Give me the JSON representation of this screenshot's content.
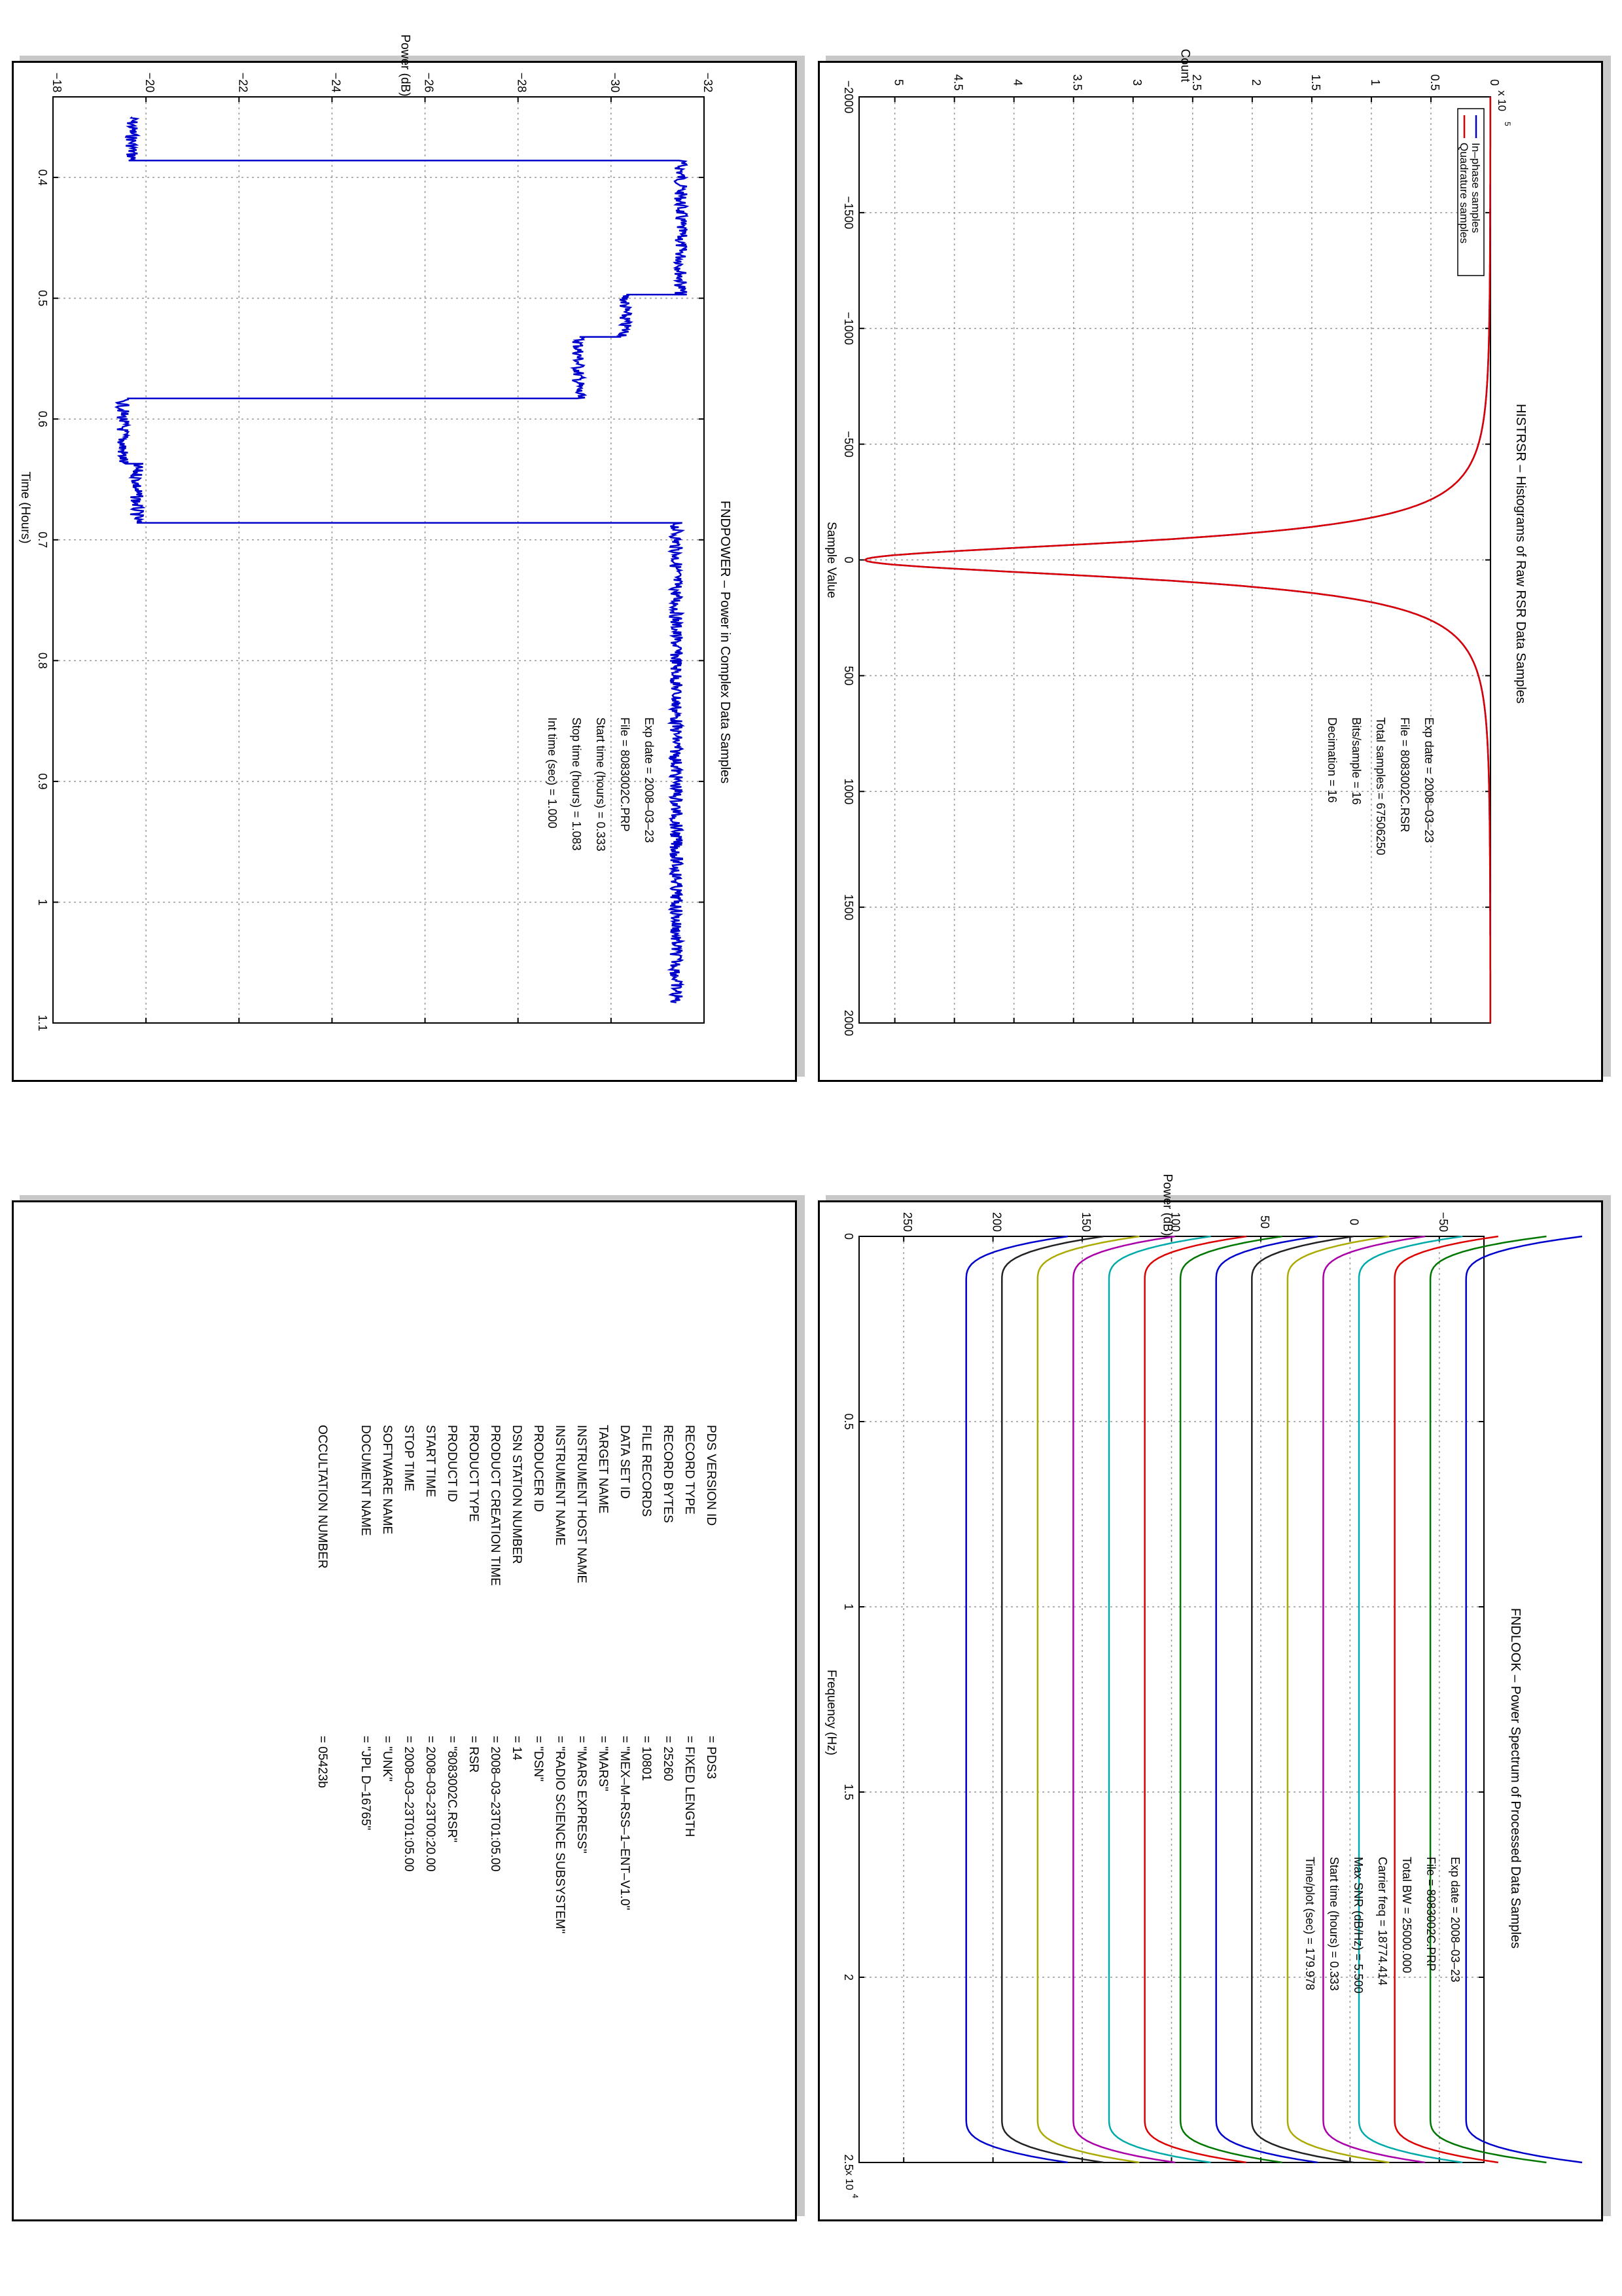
{
  "charts": [
    {
      "id": "histrsr",
      "title": "HISTRSR – Histograms of Raw RSR Data Samples",
      "xlabel": "Sample Value",
      "ylabel": "Count",
      "y_exponent": "x 10",
      "y_exponent_power": "5",
      "x_ticks": [
        "−2000",
        "−1500",
        "−1000",
        "−500",
        "0",
        "500",
        "1000",
        "1500",
        "2000"
      ],
      "y_ticks": [
        "0",
        "0.5",
        "1",
        "1.5",
        "2",
        "2.5",
        "3",
        "3.5",
        "4",
        "4.5",
        "5"
      ],
      "legend": [
        "In–phase samples",
        "Quadrature samples"
      ],
      "info": [
        "Exp date = 2008–03–23",
        "File = 8083002C.RSR",
        "Total samples =  67506250",
        "Bits/sample   =      16",
        "Decimation    =      16"
      ]
    },
    {
      "id": "fndpower",
      "title": "FNDPOWER – Power in Complex Data Samples",
      "xlabel": "Time (Hours)",
      "ylabel": "Power (dB)",
      "x_ticks": [
        "0.4",
        "0.5",
        "0.6",
        "0.7",
        "0.8",
        "0.9",
        "1",
        "1.1"
      ],
      "y_ticks": [
        "−32",
        "−30",
        "−28",
        "−26",
        "−24",
        "−22",
        "−20",
        "−18"
      ],
      "info": [
        "Exp date = 2008–03–23",
        "File = 8083002C.PRP",
        "Start time (hours) =  0.333",
        "Stop time (hours) =  1.083",
        "Int time (sec) =      1.000"
      ]
    },
    {
      "id": "fndlook",
      "title": "FNDLOOK – Power Spectrum of Processed Data Samples",
      "xlabel": "Frequency (Hz)",
      "ylabel": "Power (dB)",
      "x_exponent": "x 10",
      "x_exponent_power": "4",
      "x_ticks": [
        "0",
        "0.5",
        "1",
        "1.5",
        "2",
        "2.5"
      ],
      "y_ticks": [
        "−50",
        "0",
        "50",
        "100",
        "150",
        "200",
        "250"
      ],
      "info": [
        "Exp date = 2008–03–23",
        "File = 8083002C.PRP",
        "Total BW =      25000.000",
        "Carrier freq =  18774.414",
        "Max SNR (dB/Hz) =     5.500",
        "Start time (hours) =     0.333",
        "Time/plot (sec) =     179.978"
      ]
    }
  ],
  "chart_data": [
    {
      "type": "line",
      "title": "HISTRSR – Histograms of Raw RSR Data Samples",
      "xlabel": "Sample Value",
      "ylabel": "Count",
      "xlim": [
        -2000,
        2000
      ],
      "ylim": [
        0,
        530000
      ],
      "grid": true,
      "legend_position": "top-left",
      "series": [
        {
          "name": "In–phase samples",
          "color": "#0000cc",
          "shape": "peak at 0",
          "peak": 525000,
          "half_width": 55
        },
        {
          "name": "Quadrature samples",
          "color": "#dd0000",
          "shape": "peak at 0",
          "peak": 525000,
          "half_width": 55
        }
      ]
    },
    {
      "type": "line",
      "title": "FNDPOWER – Power in Complex Data Samples",
      "xlabel": "Time (Hours)",
      "ylabel": "Power (dB)",
      "xlim": [
        0.333,
        1.1
      ],
      "ylim": [
        -32,
        -18
      ],
      "grid": true,
      "series": [
        {
          "color": "#0000cc",
          "steps": [
            [
              0.35,
              0.386,
              -19.7
            ],
            [
              0.386,
              0.497,
              -31.5
            ],
            [
              0.497,
              0.532,
              -30.3
            ],
            [
              0.532,
              0.583,
              -29.3
            ],
            [
              0.583,
              0.637,
              -19.5
            ],
            [
              0.637,
              0.686,
              -19.8
            ],
            [
              0.686,
              1.083,
              -31.4
            ]
          ]
        }
      ]
    },
    {
      "type": "line",
      "title": "FNDLOOK – Power Spectrum of Processed Data Samples",
      "xlabel": "Frequency (Hz)",
      "ylabel": "Power (dB)",
      "xlim": [
        0,
        25000
      ],
      "ylim": [
        -75,
        275
      ],
      "grid": true,
      "series": [
        {
          "color": "#0000cc",
          "level": 215,
          "bottom": 213
        },
        {
          "color": "#222222",
          "level": 195,
          "bottom": 193
        },
        {
          "color": "#aaaa00",
          "level": 175,
          "bottom": 173
        },
        {
          "color": "#aa00aa",
          "level": 155,
          "bottom": 153
        },
        {
          "color": "#00aaaa",
          "level": 135,
          "bottom": 133
        },
        {
          "color": "#dd0000",
          "level": 115,
          "bottom": 113
        },
        {
          "color": "#007700",
          "level": 95,
          "bottom": 93
        },
        {
          "color": "#0000cc",
          "level": 75,
          "bottom": 73
        },
        {
          "color": "#222222",
          "level": 55,
          "bottom": 53
        },
        {
          "color": "#aaaa00",
          "level": 35,
          "bottom": 33
        },
        {
          "color": "#aa00aa",
          "level": 15,
          "bottom": 13
        },
        {
          "color": "#00aaaa",
          "level": -5,
          "bottom": -8
        },
        {
          "color": "#dd0000",
          "level": -25,
          "bottom": -28
        },
        {
          "color": "#007700",
          "level": -45,
          "bottom": -55
        },
        {
          "color": "#0000cc",
          "level": -65,
          "bottom": -75
        }
      ]
    }
  ],
  "label_table": {
    "rows": [
      {
        "key": "PDS VERSION ID",
        "value": "= PDS3"
      },
      {
        "key": "RECORD TYPE",
        "value": "= FIXED LENGTH"
      },
      {
        "key": "RECORD BYTES",
        "value": "= 25260"
      },
      {
        "key": "FILE RECORDS",
        "value": "= 10801"
      },
      {
        "key": "DATA SET ID",
        "value": "= \"MEX–M–RSS–1–ENT–V1.0\""
      },
      {
        "key": "TARGET NAME",
        "value": "= \"MARS\""
      },
      {
        "key": "INSTRUMENT HOST NAME",
        "value": "= \"MARS EXPRESS\""
      },
      {
        "key": "INSTRUMENT NAME",
        "value": "= \"RADIO SCIENCE SUBSYSTEM\""
      },
      {
        "key": "PRODUCER ID",
        "value": "= \"DSN\""
      },
      {
        "key": "DSN STATION NUMBER",
        "value": "= 14"
      },
      {
        "key": "PRODUCT CREATION TIME",
        "value": "= 2008–03–23T01:05.00"
      },
      {
        "key": "PRODUCT TYPE",
        "value": "= RSR"
      },
      {
        "key": "PRODUCT ID",
        "value": "= \"8083002C.RSR\""
      },
      {
        "key": "START TIME",
        "value": "= 2008–03–23T00:20.00"
      },
      {
        "key": "STOP TIME",
        "value": "= 2008–03–23T01:05.00"
      },
      {
        "key": "SOFTWARE NAME",
        "value": "= \"UNK\""
      },
      {
        "key": "DOCUMENT NAME",
        "value": "= \"JPL D–16765\""
      },
      {
        "key": "OCCULTATION NUMBER",
        "value": "= 05423b"
      }
    ]
  }
}
